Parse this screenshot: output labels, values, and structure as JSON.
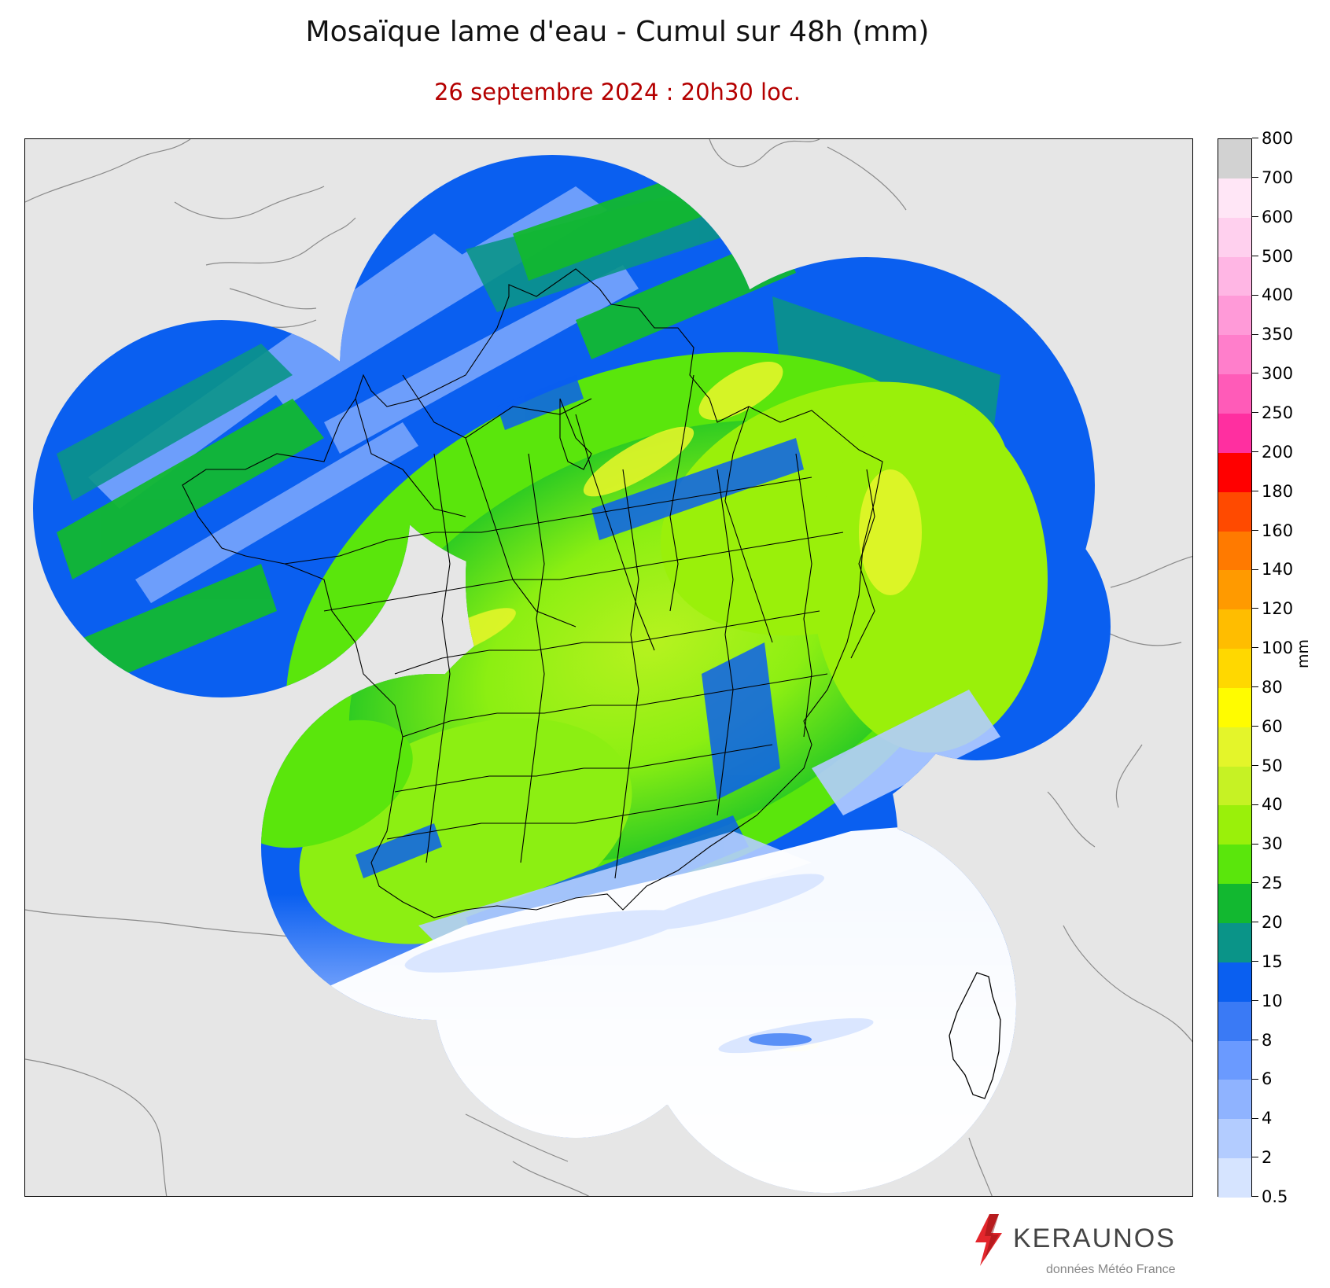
{
  "title": "Mosaïque lame d'eau - Cumul sur 48h (mm)",
  "subtitle": "26 septembre 2024 : 20h30 loc.",
  "colorbar": {
    "unit": "mm",
    "ticks": [
      "0.5",
      "2",
      "4",
      "6",
      "8",
      "10",
      "15",
      "20",
      "25",
      "30",
      "40",
      "50",
      "60",
      "80",
      "100",
      "120",
      "140",
      "160",
      "180",
      "200",
      "250",
      "300",
      "350",
      "400",
      "500",
      "600",
      "700",
      "800"
    ],
    "colors": [
      "#d6e4ff",
      "#b3ccff",
      "#8fb3ff",
      "#6a9aff",
      "#3a7af5",
      "#0a5ff0",
      "#0a9488",
      "#12b830",
      "#5ae60c",
      "#9af00a",
      "#c6f224",
      "#e4f52a",
      "#fffc00",
      "#ffd800",
      "#ffbd00",
      "#ff9a00",
      "#ff7a00",
      "#ff4a00",
      "#ff0000",
      "#ff2fa0",
      "#ff5bb8",
      "#ff7ecb",
      "#ff9ad8",
      "#ffb6e4",
      "#ffd0ee",
      "#ffe6f6",
      "#d2d2d2"
    ]
  },
  "branding": {
    "logo_text": "KERAUNOS",
    "source": "données Météo France"
  }
}
